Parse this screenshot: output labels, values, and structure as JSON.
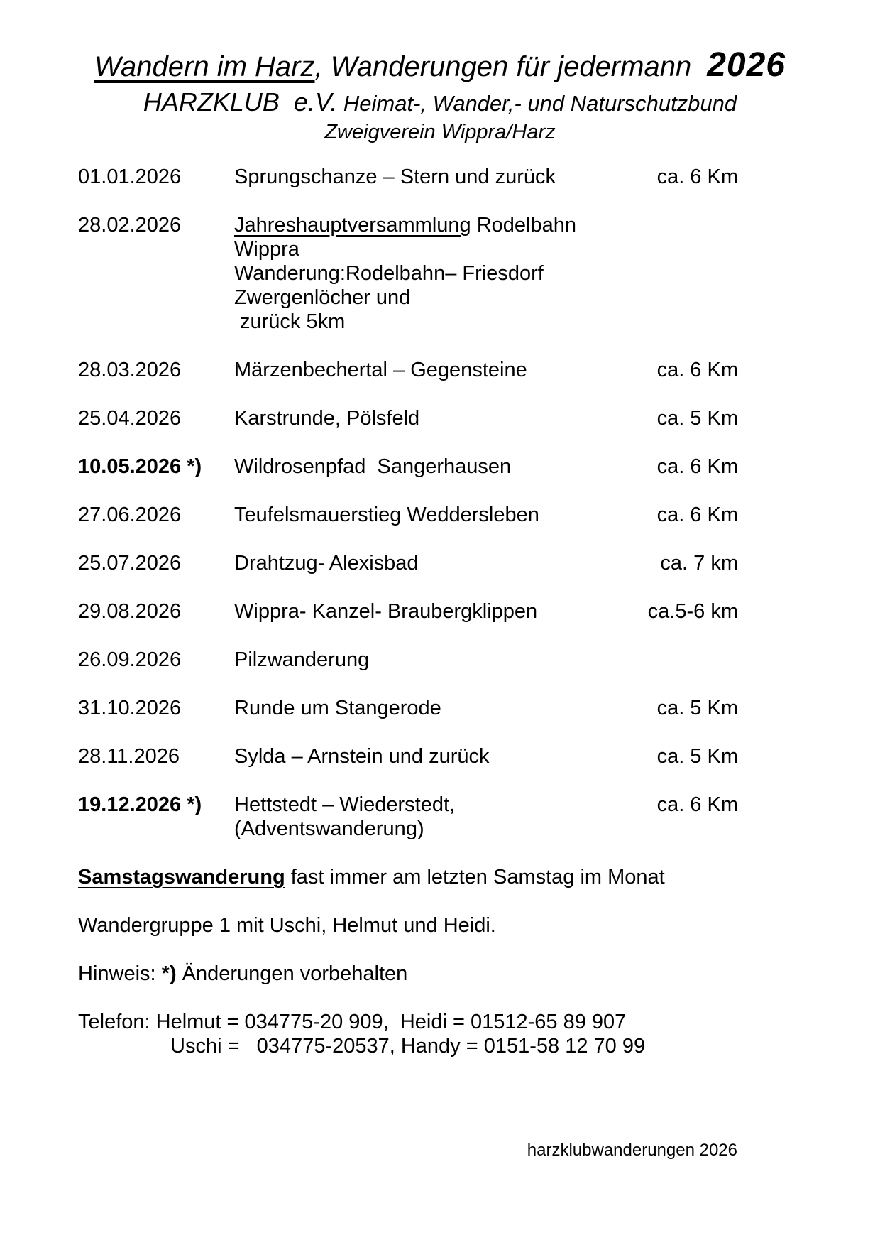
{
  "header": {
    "title_main": "Wandern im Harz",
    "title_rest": ", Wanderungen für jedermann",
    "title_year": "2026",
    "org": "HARZKLUB  e.V.",
    "org_rest": " Heimat-, Wander,- und Naturschutzbund",
    "branch": "Zweigverein Wippra/Harz"
  },
  "schedule": {
    "entries": [
      {
        "date": "01.01.2026",
        "title": "Sprungschanze – Stern und zurück",
        "distance": "ca. 6 Km"
      },
      {
        "date": "28.02.2026",
        "title_underlined": "Jahreshauptversammlung",
        "title": " Rodelbahn Wippra",
        "line2": "Wanderung:Rodelbahn– Friesdorf Zwergenlöcher und",
        "line3": "zurück 5km",
        "distance": ""
      },
      {
        "date": "28.03.2026",
        "title": "Märzenbechertal – Gegensteine",
        "distance": "ca. 6 Km"
      },
      {
        "date": "25.04.2026",
        "title": "Karstrunde, Pölsfeld",
        "distance": "ca. 5 Km"
      },
      {
        "date": "10.05.2026 *)",
        "title": "Wildrosenpfad  Sangerhausen",
        "distance": "ca. 6 Km"
      },
      {
        "date": "27.06.2026",
        "title": "Teufelsmauerstieg Weddersleben",
        "distance": "ca. 6 Km"
      },
      {
        "date": "25.07.2026",
        "title": "Drahtzug- Alexisbad",
        "distance": "ca. 7 km"
      },
      {
        "date": "29.08.2026",
        "title": "Wippra- Kanzel- Braubergklippen",
        "distance": "ca.5-6 km"
      },
      {
        "date": "26.09.2026",
        "title": "Pilzwanderung",
        "distance": ""
      },
      {
        "date": "31.10.2026",
        "title": "Runde um Stangerode",
        "distance": "ca. 5 Km"
      },
      {
        "date": "28.11.2026",
        "title": "Sylda – Arnstein und zurück",
        "distance": "ca. 5 Km"
      },
      {
        "date": "19.12.2026 *)",
        "title": "Hettstedt – Wiederstedt, (Adventswanderung)",
        "distance": "ca. 6 Km"
      }
    ]
  },
  "notes": {
    "samstag_bold": "Samstagswanderung",
    "samstag_rest": " fast immer am letzten Samstag im Monat",
    "gruppe": "Wandergruppe 1 mit Uschi, Helmut und Heidi.",
    "hinweis_label": "Hinweis: ",
    "hinweis_star": "*)",
    "hinweis_rest": " Änderungen vorbehalten",
    "telefon_line1": "Telefon: Helmut = 034775-20 909,  Heidi = 01512-65 89 907",
    "telefon_line2": "Uschi =   034775-20537, Handy = 0151-58 12 70 99"
  },
  "footer": {
    "text": "harzklubwanderungen 2026"
  }
}
